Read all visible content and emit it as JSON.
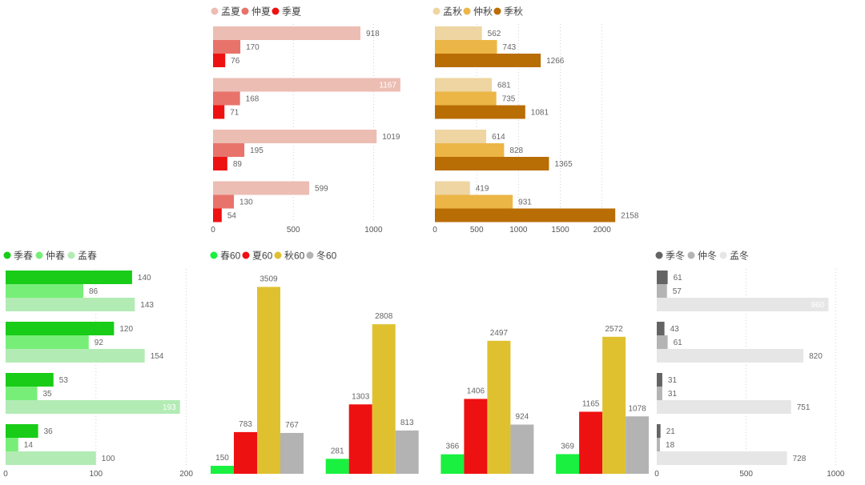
{
  "chart_data": [
    {
      "id": "summer",
      "type": "bar",
      "orientation": "horizontal",
      "groups": 4,
      "series": [
        {
          "name": "孟夏",
          "color": "#ecbdb3",
          "values": [
            918,
            1167,
            1019,
            599
          ]
        },
        {
          "name": "仲夏",
          "color": "#e8736a",
          "values": [
            170,
            168,
            195,
            130
          ]
        },
        {
          "name": "季夏",
          "color": "#ee1111",
          "values": [
            76,
            71,
            89,
            54
          ]
        }
      ],
      "xlim": [
        0,
        1150
      ],
      "ticks": [
        "0",
        "500",
        "1000"
      ],
      "tick_values": [
        0,
        500,
        1000
      ],
      "grid": true,
      "legend": "top-left"
    },
    {
      "id": "autumn",
      "type": "bar",
      "orientation": "horizontal",
      "groups": 4,
      "series": [
        {
          "name": "孟秋",
          "color": "#eed5a1",
          "values": [
            562,
            681,
            614,
            419
          ]
        },
        {
          "name": "仲秋",
          "color": "#ecb646",
          "values": [
            743,
            735,
            828,
            931
          ]
        },
        {
          "name": "季秋",
          "color": "#b96d05",
          "values": [
            1266,
            1081,
            1365,
            2158
          ]
        }
      ],
      "xlim": [
        0,
        2300
      ],
      "ticks": [
        "0",
        "500",
        "1000",
        "1500",
        "2000"
      ],
      "tick_values": [
        0,
        500,
        1000,
        1500,
        2000
      ],
      "grid": true,
      "legend": "top-left"
    },
    {
      "id": "spring",
      "type": "bar",
      "orientation": "horizontal",
      "groups": 4,
      "series": [
        {
          "name": "季春",
          "color": "#18cc18",
          "values": [
            140,
            120,
            53,
            36
          ]
        },
        {
          "name": "仲春",
          "color": "#77ee77",
          "values": [
            86,
            92,
            35,
            14
          ]
        },
        {
          "name": "孟春",
          "color": "#b2ebb4",
          "values": [
            143,
            154,
            193,
            100
          ]
        }
      ],
      "xlim": [
        0,
        215
      ],
      "ticks": [
        "0",
        "100",
        "200"
      ],
      "tick_values": [
        0,
        100,
        200
      ],
      "grid": true,
      "legend": "top-left"
    },
    {
      "id": "sixty",
      "type": "bar",
      "orientation": "vertical",
      "groups": 4,
      "series": [
        {
          "name": "春60",
          "color": "#19f03f",
          "values": [
            150,
            281,
            366,
            369
          ]
        },
        {
          "name": "夏60",
          "color": "#ee1111",
          "values": [
            783,
            1303,
            1406,
            1165
          ]
        },
        {
          "name": "秋60",
          "color": "#dfc130",
          "values": [
            3509,
            2808,
            2497,
            2572
          ]
        },
        {
          "name": "冬60",
          "color": "#b3b3b3",
          "values": [
            767,
            813,
            924,
            1078
          ]
        }
      ],
      "ylim": [
        0,
        3600
      ],
      "legend": "top-left"
    },
    {
      "id": "winter",
      "type": "bar",
      "orientation": "horizontal",
      "groups": 4,
      "series": [
        {
          "name": "季冬",
          "color": "#646464",
          "values": [
            61,
            43,
            31,
            21
          ]
        },
        {
          "name": "仲冬",
          "color": "#b4b4b4",
          "values": [
            57,
            61,
            31,
            18
          ]
        },
        {
          "name": "孟冬",
          "color": "#e6e6e6",
          "values": [
            960,
            820,
            751,
            728
          ]
        }
      ],
      "xlim": [
        0,
        1050
      ],
      "ticks": [
        "0",
        "500",
        "1000"
      ],
      "tick_values": [
        0,
        500,
        1000
      ],
      "grid": true,
      "legend": "top-left"
    }
  ]
}
